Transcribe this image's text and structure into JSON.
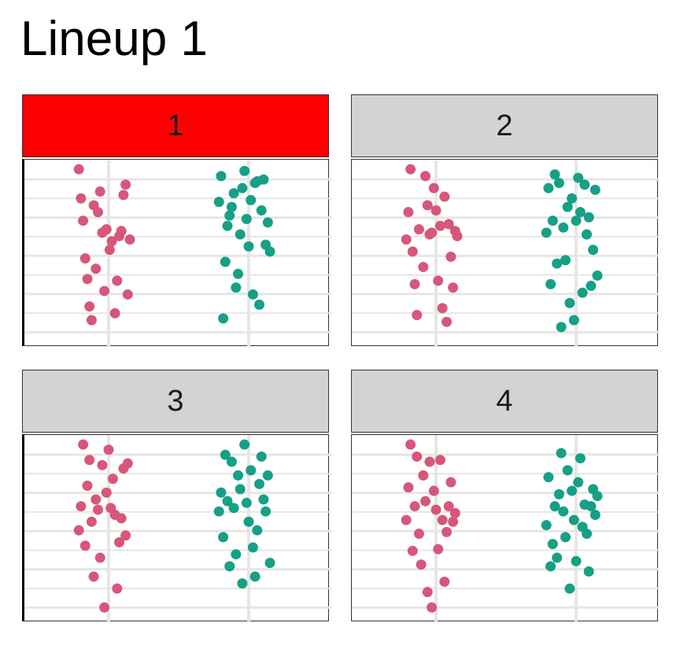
{
  "title": "Lineup 1",
  "colors": {
    "highlight_strip": "#ff0000",
    "default_strip": "#d3d3d3",
    "group_a": "#d6577a",
    "group_b": "#16a085",
    "grid": "#e6e6e6"
  },
  "chart_data": {
    "type": "scatter",
    "style": "beeswarm",
    "title": "Lineup 1",
    "xlabel": "",
    "ylabel": "",
    "groups": [
      "a",
      "b"
    ],
    "ylim": [
      0,
      100
    ],
    "grid": true,
    "facets": [
      {
        "label": "1",
        "highlighted": true,
        "points": [
          {
            "g": "a",
            "x": -0.28,
            "y": 99
          },
          {
            "g": "a",
            "x": -0.26,
            "y": 82
          },
          {
            "g": "a",
            "x": -0.24,
            "y": 69
          },
          {
            "g": "a",
            "x": -0.22,
            "y": 47
          },
          {
            "g": "a",
            "x": -0.2,
            "y": 35
          },
          {
            "g": "a",
            "x": -0.18,
            "y": 19
          },
          {
            "g": "a",
            "x": -0.16,
            "y": 11
          },
          {
            "g": "a",
            "x": -0.14,
            "y": 78
          },
          {
            "g": "a",
            "x": -0.12,
            "y": 41
          },
          {
            "g": "a",
            "x": -0.1,
            "y": 74
          },
          {
            "g": "a",
            "x": -0.08,
            "y": 86
          },
          {
            "g": "a",
            "x": -0.06,
            "y": 62
          },
          {
            "g": "a",
            "x": -0.04,
            "y": 28
          },
          {
            "g": "a",
            "x": -0.02,
            "y": 64
          },
          {
            "g": "a",
            "x": 0.01,
            "y": 52
          },
          {
            "g": "a",
            "x": 0.03,
            "y": 57
          },
          {
            "g": "a",
            "x": 0.06,
            "y": 15
          },
          {
            "g": "a",
            "x": 0.08,
            "y": 34
          },
          {
            "g": "a",
            "x": 0.1,
            "y": 60
          },
          {
            "g": "a",
            "x": 0.12,
            "y": 63
          },
          {
            "g": "a",
            "x": 0.14,
            "y": 84
          },
          {
            "g": "a",
            "x": 0.16,
            "y": 90
          },
          {
            "g": "a",
            "x": 0.18,
            "y": 26
          },
          {
            "g": "a",
            "x": 0.2,
            "y": 58
          },
          {
            "g": "b",
            "x": -0.28,
            "y": 80
          },
          {
            "g": "b",
            "x": -0.26,
            "y": 95
          },
          {
            "g": "b",
            "x": -0.24,
            "y": 12
          },
          {
            "g": "b",
            "x": -0.22,
            "y": 45
          },
          {
            "g": "b",
            "x": -0.2,
            "y": 66
          },
          {
            "g": "b",
            "x": -0.18,
            "y": 72
          },
          {
            "g": "b",
            "x": -0.16,
            "y": 77
          },
          {
            "g": "b",
            "x": -0.14,
            "y": 85
          },
          {
            "g": "b",
            "x": -0.12,
            "y": 30
          },
          {
            "g": "b",
            "x": -0.1,
            "y": 38
          },
          {
            "g": "b",
            "x": -0.08,
            "y": 61
          },
          {
            "g": "b",
            "x": -0.06,
            "y": 88
          },
          {
            "g": "b",
            "x": -0.04,
            "y": 98
          },
          {
            "g": "b",
            "x": -0.02,
            "y": 70
          },
          {
            "g": "b",
            "x": 0.0,
            "y": 54
          },
          {
            "g": "b",
            "x": 0.02,
            "y": 81
          },
          {
            "g": "b",
            "x": 0.04,
            "y": 26
          },
          {
            "g": "b",
            "x": 0.06,
            "y": 91
          },
          {
            "g": "b",
            "x": 0.08,
            "y": 92
          },
          {
            "g": "b",
            "x": 0.1,
            "y": 20
          },
          {
            "g": "b",
            "x": 0.12,
            "y": 75
          },
          {
            "g": "b",
            "x": 0.14,
            "y": 93
          },
          {
            "g": "b",
            "x": 0.16,
            "y": 55
          },
          {
            "g": "b",
            "x": 0.18,
            "y": 68
          },
          {
            "g": "b",
            "x": 0.2,
            "y": 51
          }
        ]
      },
      {
        "label": "2",
        "highlighted": false,
        "points": [
          {
            "g": "a",
            "x": -0.28,
            "y": 58
          },
          {
            "g": "a",
            "x": -0.26,
            "y": 74
          },
          {
            "g": "a",
            "x": -0.24,
            "y": 99
          },
          {
            "g": "a",
            "x": -0.22,
            "y": 51
          },
          {
            "g": "a",
            "x": -0.2,
            "y": 32
          },
          {
            "g": "a",
            "x": -0.18,
            "y": 14
          },
          {
            "g": "a",
            "x": -0.16,
            "y": 64
          },
          {
            "g": "a",
            "x": -0.12,
            "y": 42
          },
          {
            "g": "a",
            "x": -0.1,
            "y": 95
          },
          {
            "g": "a",
            "x": -0.08,
            "y": 78
          },
          {
            "g": "a",
            "x": -0.06,
            "y": 61
          },
          {
            "g": "a",
            "x": -0.04,
            "y": 62
          },
          {
            "g": "a",
            "x": -0.02,
            "y": 88
          },
          {
            "g": "a",
            "x": 0.0,
            "y": 75
          },
          {
            "g": "a",
            "x": 0.02,
            "y": 34
          },
          {
            "g": "a",
            "x": 0.04,
            "y": 66
          },
          {
            "g": "a",
            "x": 0.06,
            "y": 18
          },
          {
            "g": "a",
            "x": 0.08,
            "y": 83
          },
          {
            "g": "a",
            "x": 0.1,
            "y": 10
          },
          {
            "g": "a",
            "x": 0.12,
            "y": 67
          },
          {
            "g": "a",
            "x": 0.14,
            "y": 48
          },
          {
            "g": "a",
            "x": 0.16,
            "y": 30
          },
          {
            "g": "a",
            "x": 0.18,
            "y": 63
          },
          {
            "g": "a",
            "x": 0.2,
            "y": 60
          },
          {
            "g": "b",
            "x": -0.28,
            "y": 62
          },
          {
            "g": "b",
            "x": -0.26,
            "y": 88
          },
          {
            "g": "b",
            "x": -0.24,
            "y": 32
          },
          {
            "g": "b",
            "x": -0.22,
            "y": 69
          },
          {
            "g": "b",
            "x": -0.2,
            "y": 96
          },
          {
            "g": "b",
            "x": -0.18,
            "y": 44
          },
          {
            "g": "b",
            "x": -0.16,
            "y": 91
          },
          {
            "g": "b",
            "x": -0.14,
            "y": 7
          },
          {
            "g": "b",
            "x": -0.12,
            "y": 65
          },
          {
            "g": "b",
            "x": -0.1,
            "y": 46
          },
          {
            "g": "b",
            "x": -0.08,
            "y": 77
          },
          {
            "g": "b",
            "x": -0.06,
            "y": 21
          },
          {
            "g": "b",
            "x": -0.04,
            "y": 82
          },
          {
            "g": "b",
            "x": -0.02,
            "y": 11
          },
          {
            "g": "b",
            "x": 0.0,
            "y": 69
          },
          {
            "g": "b",
            "x": 0.02,
            "y": 94
          },
          {
            "g": "b",
            "x": 0.04,
            "y": 74
          },
          {
            "g": "b",
            "x": 0.06,
            "y": 27
          },
          {
            "g": "b",
            "x": 0.08,
            "y": 90
          },
          {
            "g": "b",
            "x": 0.1,
            "y": 61
          },
          {
            "g": "b",
            "x": 0.12,
            "y": 71
          },
          {
            "g": "b",
            "x": 0.14,
            "y": 31
          },
          {
            "g": "b",
            "x": 0.16,
            "y": 52
          },
          {
            "g": "b",
            "x": 0.18,
            "y": 87
          },
          {
            "g": "b",
            "x": 0.2,
            "y": 37
          }
        ]
      },
      {
        "label": "3",
        "highlighted": false,
        "points": [
          {
            "g": "a",
            "x": -0.28,
            "y": 49
          },
          {
            "g": "a",
            "x": -0.26,
            "y": 63
          },
          {
            "g": "a",
            "x": -0.24,
            "y": 99
          },
          {
            "g": "a",
            "x": -0.22,
            "y": 40
          },
          {
            "g": "a",
            "x": -0.2,
            "y": 75
          },
          {
            "g": "a",
            "x": -0.18,
            "y": 90
          },
          {
            "g": "a",
            "x": -0.16,
            "y": 54
          },
          {
            "g": "a",
            "x": -0.14,
            "y": 22
          },
          {
            "g": "a",
            "x": -0.12,
            "y": 67
          },
          {
            "g": "a",
            "x": -0.1,
            "y": 61
          },
          {
            "g": "a",
            "x": -0.08,
            "y": 33
          },
          {
            "g": "a",
            "x": -0.06,
            "y": 87
          },
          {
            "g": "a",
            "x": -0.04,
            "y": 4
          },
          {
            "g": "a",
            "x": -0.02,
            "y": 71
          },
          {
            "g": "a",
            "x": 0.0,
            "y": 96
          },
          {
            "g": "a",
            "x": 0.02,
            "y": 62
          },
          {
            "g": "a",
            "x": 0.04,
            "y": 79
          },
          {
            "g": "a",
            "x": 0.06,
            "y": 58
          },
          {
            "g": "a",
            "x": 0.08,
            "y": 15
          },
          {
            "g": "a",
            "x": 0.1,
            "y": 42
          },
          {
            "g": "a",
            "x": 0.12,
            "y": 56
          },
          {
            "g": "a",
            "x": 0.14,
            "y": 85
          },
          {
            "g": "a",
            "x": 0.16,
            "y": 46
          },
          {
            "g": "a",
            "x": 0.18,
            "y": 88
          },
          {
            "g": "b",
            "x": -0.28,
            "y": 60
          },
          {
            "g": "b",
            "x": -0.26,
            "y": 71
          },
          {
            "g": "b",
            "x": -0.24,
            "y": 45
          },
          {
            "g": "b",
            "x": -0.22,
            "y": 93
          },
          {
            "g": "b",
            "x": -0.2,
            "y": 66
          },
          {
            "g": "b",
            "x": -0.18,
            "y": 28
          },
          {
            "g": "b",
            "x": -0.16,
            "y": 89
          },
          {
            "g": "b",
            "x": -0.14,
            "y": 62
          },
          {
            "g": "b",
            "x": -0.12,
            "y": 35
          },
          {
            "g": "b",
            "x": -0.1,
            "y": 81
          },
          {
            "g": "b",
            "x": -0.08,
            "y": 73
          },
          {
            "g": "b",
            "x": -0.06,
            "y": 18
          },
          {
            "g": "b",
            "x": -0.04,
            "y": 99
          },
          {
            "g": "b",
            "x": -0.02,
            "y": 65
          },
          {
            "g": "b",
            "x": 0.0,
            "y": 54
          },
          {
            "g": "b",
            "x": 0.02,
            "y": 84
          },
          {
            "g": "b",
            "x": 0.04,
            "y": 39
          },
          {
            "g": "b",
            "x": 0.06,
            "y": 22
          },
          {
            "g": "b",
            "x": 0.08,
            "y": 49
          },
          {
            "g": "b",
            "x": 0.1,
            "y": 76
          },
          {
            "g": "b",
            "x": 0.12,
            "y": 92
          },
          {
            "g": "b",
            "x": 0.14,
            "y": 67
          },
          {
            "g": "b",
            "x": 0.16,
            "y": 60
          },
          {
            "g": "b",
            "x": 0.18,
            "y": 81
          },
          {
            "g": "b",
            "x": 0.2,
            "y": 30
          }
        ]
      },
      {
        "label": "4",
        "highlighted": false,
        "points": [
          {
            "g": "a",
            "x": -0.28,
            "y": 55
          },
          {
            "g": "a",
            "x": -0.26,
            "y": 74
          },
          {
            "g": "a",
            "x": -0.24,
            "y": 99
          },
          {
            "g": "a",
            "x": -0.22,
            "y": 37
          },
          {
            "g": "a",
            "x": -0.2,
            "y": 63
          },
          {
            "g": "a",
            "x": -0.18,
            "y": 92
          },
          {
            "g": "a",
            "x": -0.16,
            "y": 47
          },
          {
            "g": "a",
            "x": -0.14,
            "y": 29
          },
          {
            "g": "a",
            "x": -0.12,
            "y": 81
          },
          {
            "g": "a",
            "x": -0.1,
            "y": 66
          },
          {
            "g": "a",
            "x": -0.08,
            "y": 13
          },
          {
            "g": "a",
            "x": -0.06,
            "y": 89
          },
          {
            "g": "a",
            "x": -0.04,
            "y": 4
          },
          {
            "g": "a",
            "x": -0.02,
            "y": 72
          },
          {
            "g": "a",
            "x": 0.0,
            "y": 61
          },
          {
            "g": "a",
            "x": 0.02,
            "y": 38
          },
          {
            "g": "a",
            "x": 0.04,
            "y": 90
          },
          {
            "g": "a",
            "x": 0.06,
            "y": 55
          },
          {
            "g": "a",
            "x": 0.08,
            "y": 19
          },
          {
            "g": "a",
            "x": 0.1,
            "y": 48
          },
          {
            "g": "a",
            "x": 0.12,
            "y": 63
          },
          {
            "g": "a",
            "x": 0.14,
            "y": 77
          },
          {
            "g": "a",
            "x": 0.16,
            "y": 54
          },
          {
            "g": "a",
            "x": 0.18,
            "y": 59
          },
          {
            "g": "b",
            "x": -0.28,
            "y": 52
          },
          {
            "g": "b",
            "x": -0.26,
            "y": 80
          },
          {
            "g": "b",
            "x": -0.24,
            "y": 28
          },
          {
            "g": "b",
            "x": -0.22,
            "y": 41
          },
          {
            "g": "b",
            "x": -0.2,
            "y": 63
          },
          {
            "g": "b",
            "x": -0.18,
            "y": 33
          },
          {
            "g": "b",
            "x": -0.16,
            "y": 70
          },
          {
            "g": "b",
            "x": -0.14,
            "y": 94
          },
          {
            "g": "b",
            "x": -0.12,
            "y": 60
          },
          {
            "g": "b",
            "x": -0.1,
            "y": 45
          },
          {
            "g": "b",
            "x": -0.08,
            "y": 84
          },
          {
            "g": "b",
            "x": -0.06,
            "y": 15
          },
          {
            "g": "b",
            "x": -0.04,
            "y": 72
          },
          {
            "g": "b",
            "x": -0.02,
            "y": 55
          },
          {
            "g": "b",
            "x": 0.0,
            "y": 31
          },
          {
            "g": "b",
            "x": 0.02,
            "y": 77
          },
          {
            "g": "b",
            "x": 0.04,
            "y": 91
          },
          {
            "g": "b",
            "x": 0.06,
            "y": 51
          },
          {
            "g": "b",
            "x": 0.08,
            "y": 64
          },
          {
            "g": "b",
            "x": 0.1,
            "y": 47
          },
          {
            "g": "b",
            "x": 0.12,
            "y": 25
          },
          {
            "g": "b",
            "x": 0.14,
            "y": 63
          },
          {
            "g": "b",
            "x": 0.16,
            "y": 73
          },
          {
            "g": "b",
            "x": 0.18,
            "y": 58
          },
          {
            "g": "b",
            "x": 0.2,
            "y": 69
          }
        ]
      }
    ]
  }
}
